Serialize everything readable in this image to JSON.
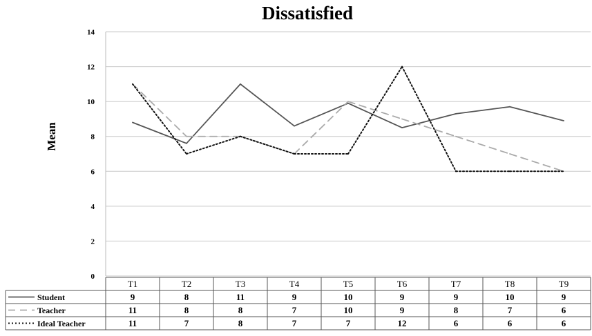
{
  "chart_data": {
    "type": "line",
    "title": "Dissatisfied",
    "xlabel": "",
    "ylabel": "Mean",
    "ylim": [
      0,
      14
    ],
    "yticks": [
      0,
      2,
      4,
      6,
      8,
      10,
      12,
      14
    ],
    "grid": true,
    "legend": "data-table-left",
    "categories": [
      "T1",
      "T2",
      "T3",
      "T4",
      "T5",
      "T6",
      "T7",
      "T8",
      "T9"
    ],
    "series": [
      {
        "name": "Student",
        "style": "solid",
        "color": "#555555",
        "values": [
          8.8,
          7.6,
          11.0,
          8.6,
          9.9,
          8.5,
          9.3,
          9.7,
          8.9
        ],
        "table_values": [
          "9",
          "8",
          "11",
          "9",
          "10",
          "9",
          "9",
          "10",
          "9"
        ]
      },
      {
        "name": "Teacher",
        "style": "dashed",
        "color": "#aaaaaa",
        "values": [
          11,
          8,
          8,
          7,
          10,
          9,
          8,
          7,
          6
        ],
        "table_values": [
          "11",
          "8",
          "8",
          "7",
          "10",
          "9",
          "8",
          "7",
          "6"
        ]
      },
      {
        "name": "Ideal Teacher",
        "style": "dotted",
        "color": "#111111",
        "values": [
          11,
          7,
          8,
          7,
          7,
          12,
          6,
          6,
          6
        ],
        "table_values": [
          "11",
          "7",
          "8",
          "7",
          "7",
          "12",
          "6",
          "6",
          "6"
        ]
      }
    ]
  }
}
